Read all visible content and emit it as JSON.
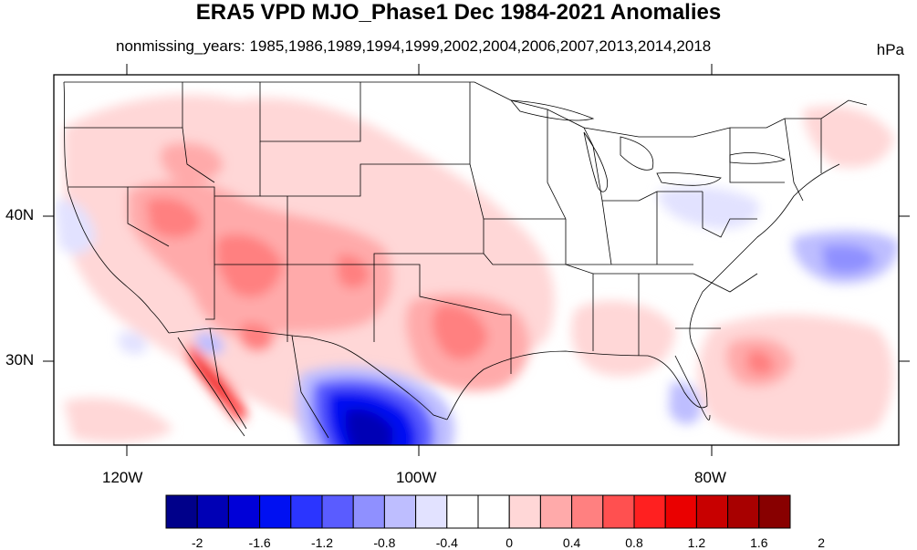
{
  "title": "ERA5 VPD MJO_Phase1 Dec 1984-2021 Anomalies",
  "subtitle": "nonmissing_years: 1985,1986,1989,1994,1999,2002,2004,2006,2007,2013,2014,2018",
  "units": "hPa",
  "axes": {
    "x_ticks": [
      "120W",
      "100W",
      "80W"
    ],
    "y_ticks": [
      "40N",
      "30N"
    ]
  },
  "colorbar": {
    "labels": [
      "-2",
      "-1.6",
      "-1.2",
      "-0.8",
      "-0.4",
      "0",
      "0.4",
      "0.8",
      "1.2",
      "1.6",
      "2"
    ],
    "colors": [
      "#00008a",
      "#0000b5",
      "#0000d8",
      "#0010f2",
      "#2b35ff",
      "#5a5cff",
      "#8f90ff",
      "#bebeff",
      "#e2e2ff",
      "#ffffff",
      "#ffffff",
      "#ffd7d7",
      "#ffaaaa",
      "#ff8080",
      "#ff5050",
      "#ff2020",
      "#ea0000",
      "#c80000",
      "#a80000",
      "#880000"
    ]
  },
  "colors": {
    "accent_positive": "#ff5050",
    "accent_negative": "#2b35ff"
  }
}
